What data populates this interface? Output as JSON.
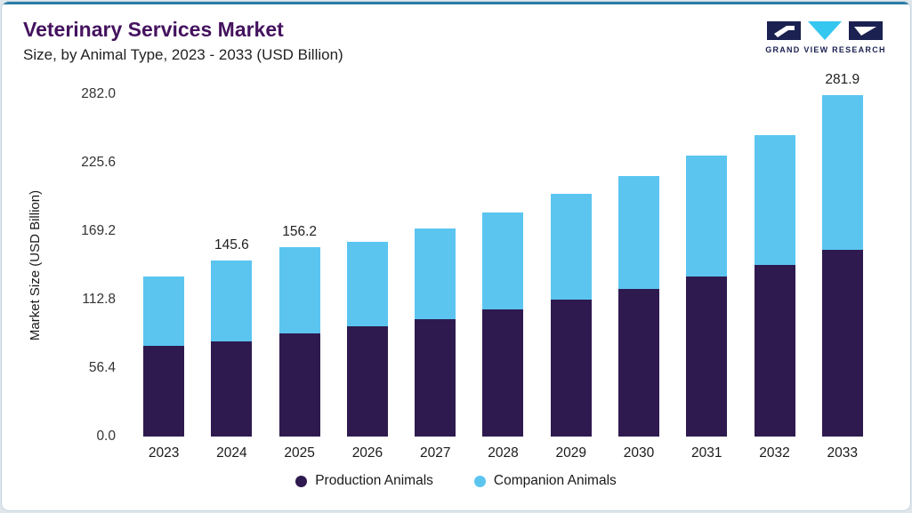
{
  "header": {
    "title": "Veterinary Services Market",
    "subtitle": "Size, by Animal Type, 2023 - 2033 (USD Billion)",
    "logo_text": "GRAND VIEW RESEARCH"
  },
  "colors": {
    "production": "#2e1a4f",
    "companion": "#5bc5f0",
    "title": "#44125e",
    "accent_line": "#2b7ca6",
    "logo_navy": "#1b2150",
    "logo_cyan": "#35c7f0"
  },
  "chart_data": {
    "type": "bar",
    "stacked": true,
    "title": "Veterinary Services Market Size, by Animal Type, 2023 - 2033 (USD Billion)",
    "xlabel": "",
    "ylabel": "Market Size (USD Billion)",
    "ylim": [
      0,
      282.0
    ],
    "ymax": 282.0,
    "grid": false,
    "legend_position": "bottom",
    "categories": [
      "2023",
      "2024",
      "2025",
      "2026",
      "2027",
      "2028",
      "2029",
      "2030",
      "2031",
      "2032",
      "2033"
    ],
    "series": [
      {
        "name": "Production Animals",
        "color": "#2e1a4f",
        "values": [
          75,
          79,
          85,
          91,
          97,
          105,
          113,
          122,
          132,
          142,
          154
        ]
      },
      {
        "name": "Companion Animals",
        "color": "#5bc5f0",
        "values": [
          57,
          66.6,
          71.2,
          70,
          75,
          80,
          87,
          93,
          100,
          107,
          127.9
        ]
      }
    ],
    "totals": [
      132,
      145.6,
      156.2,
      161,
      172,
      185,
      200,
      215,
      232,
      249,
      281.9
    ],
    "bar_labels": [
      "",
      "145.6",
      "156.2",
      "",
      "",
      "",
      "",
      "",
      "",
      "",
      "281.9"
    ],
    "y_ticks": [
      "282.0",
      "225.6",
      "169.2",
      "112.8",
      "56.4",
      "0.0"
    ]
  },
  "legend": {
    "items": [
      {
        "label": "Production Animals",
        "color": "#2e1a4f"
      },
      {
        "label": "Companion Animals",
        "color": "#5bc5f0"
      }
    ]
  }
}
